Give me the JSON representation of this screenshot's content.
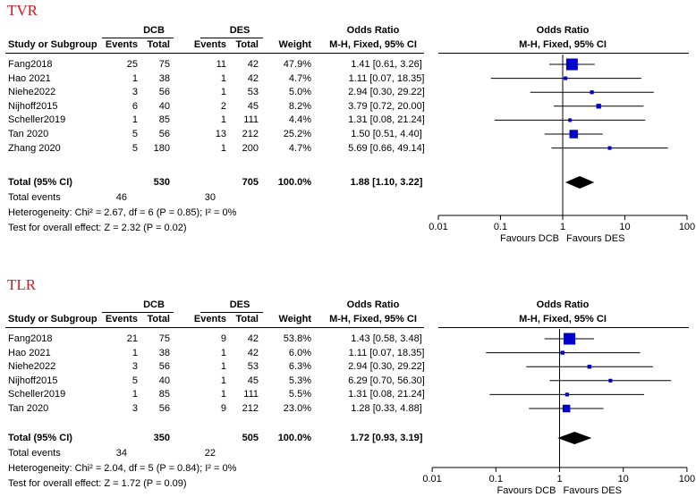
{
  "chart_data": [
    {
      "type": "forest",
      "panel_label": "TVR",
      "groups": {
        "experimental": "DCB",
        "control": "DES"
      },
      "column_headers": {
        "study": "Study or Subgroup",
        "events_exp": "Events",
        "total_exp": "Total",
        "events_ctl": "Events",
        "total_ctl": "Total",
        "weight": "Weight",
        "effect_title": "Odds Ratio",
        "effect_method": "M-H, Fixed, 95% CI"
      },
      "plot_header": {
        "title": "Odds Ratio",
        "method": "M-H, Fixed, 95% CI"
      },
      "studies": [
        {
          "name": "Fang2018",
          "events_exp": "25",
          "total_exp": "75",
          "events_ctl": "11",
          "total_ctl": "42",
          "weight": "47.9%",
          "ci_text": "1.41 [0.61, 3.26]",
          "or": 1.41,
          "lo": 0.61,
          "hi": 3.26,
          "w": 47.9
        },
        {
          "name": "Hao 2021",
          "events_exp": "1",
          "total_exp": "38",
          "events_ctl": "1",
          "total_ctl": "42",
          "weight": "4.7%",
          "ci_text": "1.11 [0.07, 18.35]",
          "or": 1.11,
          "lo": 0.07,
          "hi": 18.35,
          "w": 4.7
        },
        {
          "name": "Niehe2022",
          "events_exp": "3",
          "total_exp": "56",
          "events_ctl": "1",
          "total_ctl": "53",
          "weight": "5.0%",
          "ci_text": "2.94 [0.30, 29.22]",
          "or": 2.94,
          "lo": 0.3,
          "hi": 29.22,
          "w": 5.0
        },
        {
          "name": "Nijhoff2015",
          "events_exp": "6",
          "total_exp": "40",
          "events_ctl": "2",
          "total_ctl": "45",
          "weight": "8.2%",
          "ci_text": "3.79 [0.72, 20.00]",
          "or": 3.79,
          "lo": 0.72,
          "hi": 20.0,
          "w": 8.2
        },
        {
          "name": "Scheller2019",
          "events_exp": "1",
          "total_exp": "85",
          "events_ctl": "1",
          "total_ctl": "111",
          "weight": "4.4%",
          "ci_text": "1.31 [0.08, 21.24]",
          "or": 1.31,
          "lo": 0.08,
          "hi": 21.24,
          "w": 4.4
        },
        {
          "name": "Tan 2020",
          "events_exp": "5",
          "total_exp": "56",
          "events_ctl": "13",
          "total_ctl": "212",
          "weight": "25.2%",
          "ci_text": "1.50 [0.51, 4.40]",
          "or": 1.5,
          "lo": 0.51,
          "hi": 4.4,
          "w": 25.2
        },
        {
          "name": "Zhang 2020",
          "events_exp": "5",
          "total_exp": "180",
          "events_ctl": "1",
          "total_ctl": "200",
          "weight": "4.7%",
          "ci_text": "5.69 [0.66, 49.14]",
          "or": 5.69,
          "lo": 0.66,
          "hi": 49.14,
          "w": 4.7
        }
      ],
      "total": {
        "label": "Total (95% CI)",
        "total_exp": "530",
        "total_ctl": "705",
        "weight": "100.0%",
        "ci_text": "1.88 [1.10, 3.22]",
        "or": 1.88,
        "lo": 1.1,
        "hi": 3.22
      },
      "total_events": {
        "label": "Total events",
        "exp": "46",
        "ctl": "30"
      },
      "heterogeneity": "Heterogeneity: Chi² = 2.67, df = 6 (P = 0.85); I² = 0%",
      "overall_effect": "Test for overall effect: Z = 2.32 (P = 0.02)",
      "axis": {
        "scale": "log",
        "min": 0.01,
        "max": 100,
        "ticks": [
          0.01,
          0.1,
          1,
          10,
          100
        ],
        "tick_labels": [
          "0.01",
          "0.1",
          "1",
          "10",
          "100"
        ]
      },
      "favours": {
        "left": "Favours DCB",
        "right": "Favours DES"
      }
    },
    {
      "type": "forest",
      "panel_label": "TLR",
      "groups": {
        "experimental": "DCB",
        "control": "DES"
      },
      "column_headers": {
        "study": "Study or Subgroup",
        "events_exp": "Events",
        "total_exp": "Total",
        "events_ctl": "Events",
        "total_ctl": "Total",
        "weight": "Weight",
        "effect_title": "Odds Ratio",
        "effect_method": "M-H, Fixed, 95% CI"
      },
      "plot_header": {
        "title": "Odds Ratio",
        "method": "M-H, Fixed, 95% CI"
      },
      "studies": [
        {
          "name": "Fang2018",
          "events_exp": "21",
          "total_exp": "75",
          "events_ctl": "9",
          "total_ctl": "42",
          "weight": "53.8%",
          "ci_text": "1.43 [0.58, 3.48]",
          "or": 1.43,
          "lo": 0.58,
          "hi": 3.48,
          "w": 53.8
        },
        {
          "name": "Hao 2021",
          "events_exp": "1",
          "total_exp": "38",
          "events_ctl": "1",
          "total_ctl": "42",
          "weight": "6.0%",
          "ci_text": "1.11 [0.07, 18.35]",
          "or": 1.11,
          "lo": 0.07,
          "hi": 18.35,
          "w": 6.0
        },
        {
          "name": "Niehe2022",
          "events_exp": "3",
          "total_exp": "56",
          "events_ctl": "1",
          "total_ctl": "53",
          "weight": "6.3%",
          "ci_text": "2.94 [0.30, 29.22]",
          "or": 2.94,
          "lo": 0.3,
          "hi": 29.22,
          "w": 6.3
        },
        {
          "name": "Nijhoff2015",
          "events_exp": "5",
          "total_exp": "40",
          "events_ctl": "1",
          "total_ctl": "45",
          "weight": "5.3%",
          "ci_text": "6.29 [0.70, 56.30]",
          "or": 6.29,
          "lo": 0.7,
          "hi": 56.3,
          "w": 5.3
        },
        {
          "name": "Scheller2019",
          "events_exp": "1",
          "total_exp": "85",
          "events_ctl": "1",
          "total_ctl": "111",
          "weight": "5.5%",
          "ci_text": "1.31 [0.08, 21.24]",
          "or": 1.31,
          "lo": 0.08,
          "hi": 21.24,
          "w": 5.5
        },
        {
          "name": "Tan 2020",
          "events_exp": "3",
          "total_exp": "56",
          "events_ctl": "9",
          "total_ctl": "212",
          "weight": "23.0%",
          "ci_text": "1.28 [0.33, 4.88]",
          "or": 1.28,
          "lo": 0.33,
          "hi": 4.88,
          "w": 23.0
        }
      ],
      "total": {
        "label": "Total (95% CI)",
        "total_exp": "350",
        "total_ctl": "505",
        "weight": "100.0%",
        "ci_text": "1.72 [0.93, 3.19]",
        "or": 1.72,
        "lo": 0.93,
        "hi": 3.19
      },
      "total_events": {
        "label": "Total events",
        "exp": "34",
        "ctl": "22"
      },
      "heterogeneity": "Heterogeneity: Chi² = 2.04, df = 5 (P = 0.84); I² = 0%",
      "overall_effect": "Test for overall effect: Z = 1.72 (P = 0.09)",
      "axis": {
        "scale": "log",
        "min": 0.01,
        "max": 100,
        "ticks": [
          0.01,
          0.1,
          1,
          10,
          100
        ],
        "tick_labels": [
          "0.01",
          "0.1",
          "1",
          "10",
          "100"
        ]
      },
      "favours": {
        "left": "Favours DCB",
        "right": "Favours DES"
      }
    }
  ]
}
